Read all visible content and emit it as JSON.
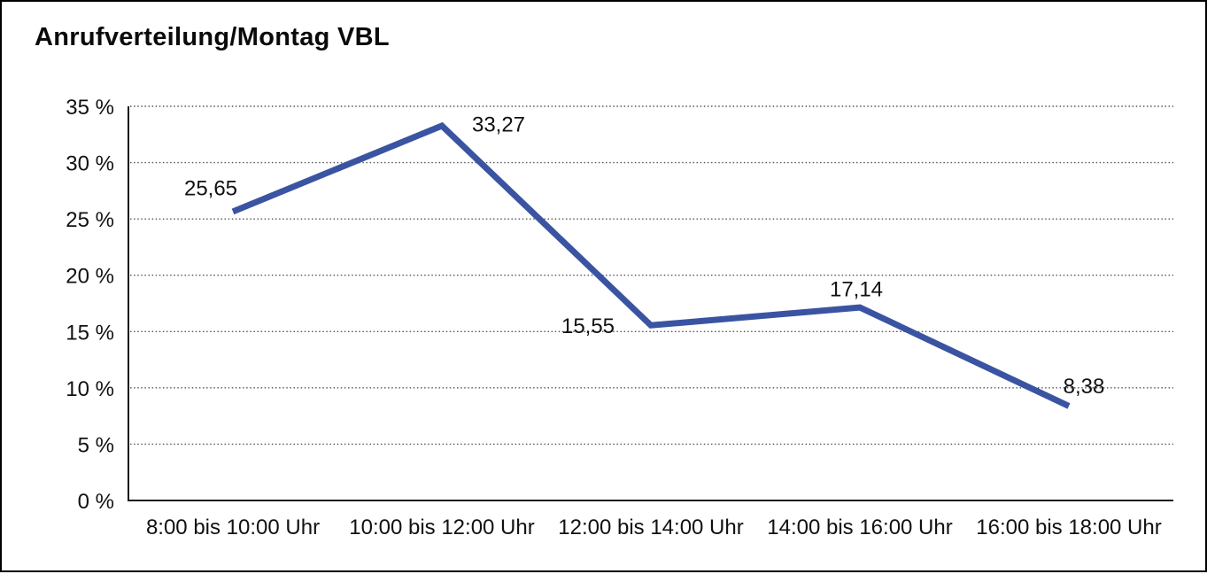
{
  "window": {
    "background": "#ffffff",
    "frame_border_color": "#000000"
  },
  "chart_data": {
    "type": "line",
    "title": "Anrufverteilung/Montag VBL",
    "categories": [
      "8:00 bis 10:00 Uhr",
      "10:00 bis 12:00 Uhr",
      "12:00 bis 14:00 Uhr",
      "14:00 bis 16:00 Uhr",
      "16:00 bis 18:00 Uhr"
    ],
    "values": [
      25.65,
      33.27,
      15.55,
      17.14,
      8.38
    ],
    "data_labels": [
      "25,65",
      "33,27",
      "15,55",
      "17,14",
      "8,38"
    ],
    "xlabel": "",
    "ylabel": "",
    "ylim": [
      0,
      35
    ],
    "y_tick_step": 5,
    "y_tick_labels": [
      "0 %",
      "5 %",
      "10 %",
      "15 %",
      "20 %",
      "25 %",
      "30 %",
      "35 %"
    ],
    "grid": "horizontal-dotted",
    "legend": "none",
    "line_color": "#3A54A2",
    "axis_color": "#1a1a1a",
    "gridline_color": "#555555",
    "text_color": "#111111"
  }
}
